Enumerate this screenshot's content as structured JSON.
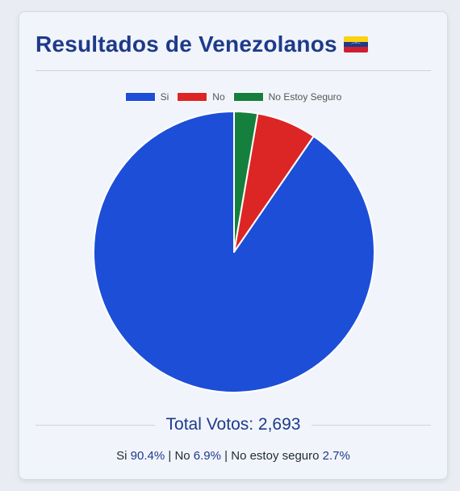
{
  "header": {
    "title": "Resultados de Venezolanos",
    "flag_icon": "venezuela-flag-icon"
  },
  "colors": {
    "accent": "#1e3a8a",
    "si": "#1d4ed8",
    "no": "#dc2626",
    "unsure": "#15803d",
    "flag_yellow": "#fcd116",
    "flag_blue": "#1d3a8a",
    "flag_red": "#cf1f2e"
  },
  "chart_data": {
    "type": "pie",
    "title": "",
    "categories": [
      "Si",
      "No",
      "No Estoy Seguro"
    ],
    "values": [
      90.4,
      6.9,
      2.7
    ],
    "legend_position": "top-center",
    "start_angle": "top",
    "direction": "counterclockwise"
  },
  "footer": {
    "total_label": "Total Votos: 2,693",
    "si_label": "Si",
    "si_pct": "90.4%",
    "sep1": "|",
    "no_label": "No",
    "no_pct": "6.9%",
    "sep2": "|",
    "unsure_label": "No estoy seguro",
    "unsure_pct": "2.7%"
  }
}
